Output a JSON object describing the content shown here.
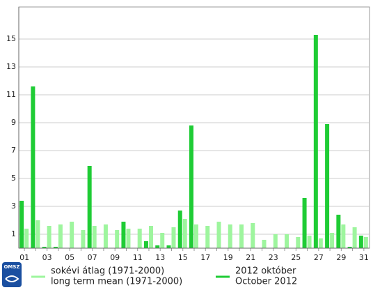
{
  "chart_data": {
    "type": "bar",
    "categories": [
      "01",
      null,
      "03",
      null,
      "05",
      null,
      "07",
      null,
      "09",
      null,
      "11",
      null,
      "13",
      null,
      "15",
      null,
      "17",
      null,
      "19",
      null,
      "21",
      null,
      "23",
      null,
      "25",
      null,
      "27",
      null,
      "29",
      null,
      "31"
    ],
    "series": [
      {
        "name": "sokévi átlag (1971-2000)",
        "name_en": "long term mean (1971-2000)",
        "color": "#9ef59e",
        "values": [
          1.4,
          2.0,
          1.6,
          1.7,
          1.9,
          1.3,
          1.6,
          1.7,
          1.3,
          1.4,
          1.4,
          1.6,
          1.1,
          1.5,
          2.1,
          1.7,
          1.6,
          1.9,
          1.7,
          1.7,
          1.8,
          0.6,
          1.0,
          1.0,
          0.8,
          0.9,
          0.7,
          1.1,
          1.7,
          1.5,
          0.8
        ]
      },
      {
        "name": "2012 október",
        "name_en": "October 2012",
        "color": "#1fcc35",
        "values": [
          3.4,
          11.6,
          0.1,
          0.1,
          0,
          0,
          5.9,
          0,
          0,
          1.9,
          0,
          0.5,
          0.2,
          0.2,
          2.7,
          8.8,
          0,
          0,
          0,
          0,
          0,
          0,
          0,
          0,
          0,
          3.6,
          15.3,
          8.9,
          2.4,
          0.1,
          0.9
        ]
      }
    ],
    "ylim": [
      0,
      17.3
    ],
    "yticks": [
      1,
      3,
      5,
      7,
      9,
      11,
      13,
      15
    ],
    "grid": true,
    "logo_text": "OMSZ"
  }
}
